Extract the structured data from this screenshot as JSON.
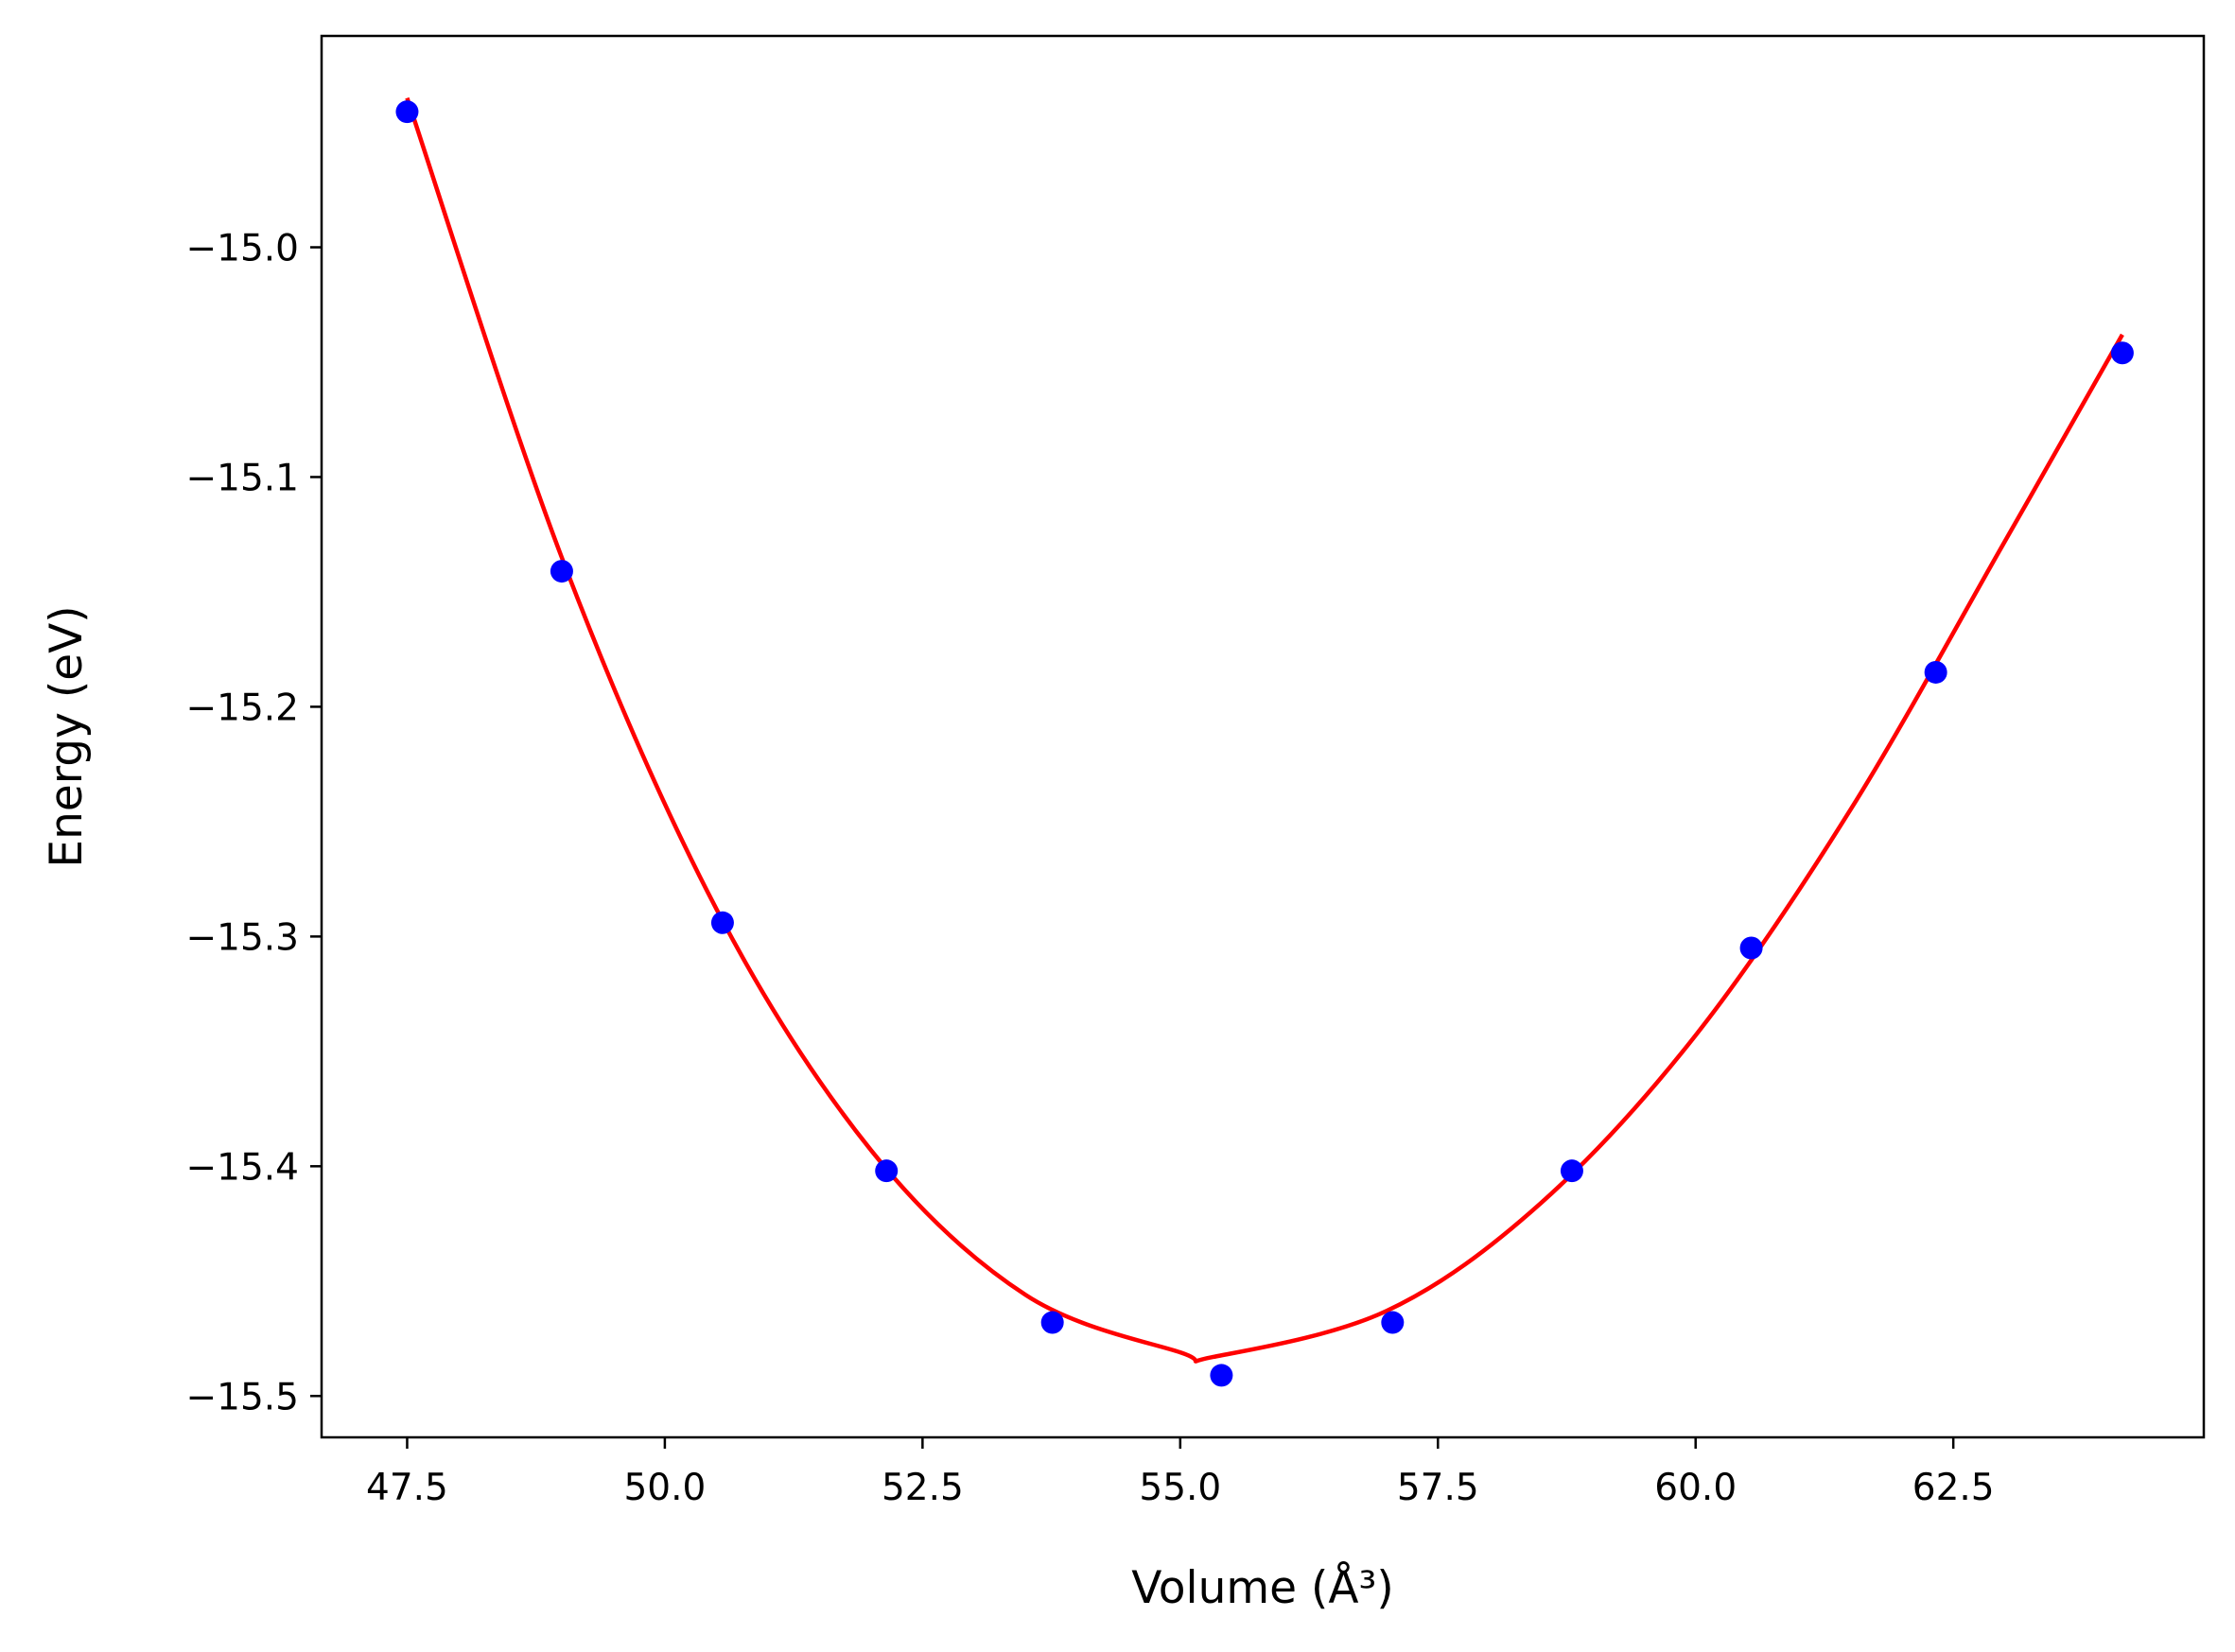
{
  "chart_data": {
    "type": "scatter",
    "xlabel": "Volume (Å³)",
    "ylabel": "Energy (eV)",
    "xlim": [
      46.67,
      64.93
    ],
    "ylim": [
      -15.518,
      -14.908
    ],
    "x_ticks": [
      47.5,
      50.0,
      52.5,
      55.0,
      57.5,
      60.0,
      62.5
    ],
    "x_tick_labels": [
      "47.5",
      "50.0",
      "52.5",
      "55.0",
      "57.5",
      "60.0",
      "62.5"
    ],
    "y_ticks": [
      -15.0,
      -15.1,
      -15.2,
      -15.3,
      -15.4,
      -15.5
    ],
    "y_tick_labels": [
      "−15.0",
      "−15.1",
      "−15.2",
      "−15.3",
      "−15.4",
      "−15.5"
    ],
    "grid": false,
    "legend": "none",
    "series": [
      {
        "kind": "points",
        "color": "#0000ff",
        "x": [
          47.5,
          49.0,
          50.56,
          52.15,
          53.76,
          55.4,
          57.06,
          58.8,
          60.54,
          62.33,
          64.14
        ],
        "y": [
          -14.941,
          -15.141,
          -15.294,
          -15.402,
          -15.468,
          -15.491,
          -15.468,
          -15.402,
          -15.305,
          -15.185,
          -15.046
        ]
      },
      {
        "kind": "fit-curve",
        "color": "#ff0000",
        "x": [
          47.5,
          49.0,
          50.5,
          52.0,
          53.5,
          55.0,
          55.32,
          57.0,
          58.5,
          60.0,
          61.5,
          63.0,
          64.14
        ],
        "y": [
          -14.935,
          -15.135,
          -15.288,
          -15.393,
          -15.456,
          -15.481,
          -15.483,
          -15.463,
          -15.416,
          -15.343,
          -15.245,
          -15.128,
          -15.038
        ]
      }
    ]
  }
}
